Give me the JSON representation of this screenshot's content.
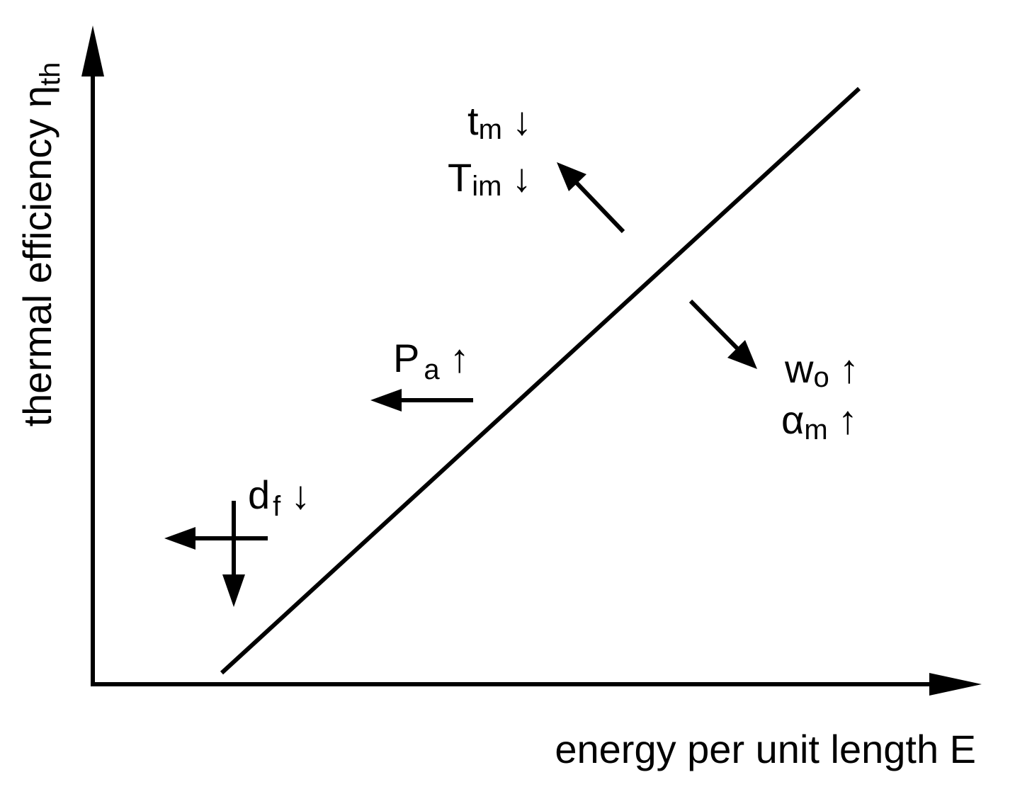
{
  "y_axis": {
    "label": "thermal efficiency η",
    "subscript": "th"
  },
  "x_axis": {
    "label": "energy per unit length E"
  },
  "annotations": [
    {
      "symbol": "t",
      "subscript": "m",
      "arrow": "↓"
    },
    {
      "symbol": "T",
      "subscript": "im",
      "arrow": "↓"
    },
    {
      "symbol": "P",
      "subscript": "a",
      "arrow": "↑"
    },
    {
      "symbol": "w",
      "subscript": "o",
      "arrow": "↑"
    },
    {
      "symbol": "α",
      "subscript": "m",
      "arrow": "↑"
    },
    {
      "symbol": "d",
      "subscript": "f",
      "arrow": "↓"
    }
  ]
}
